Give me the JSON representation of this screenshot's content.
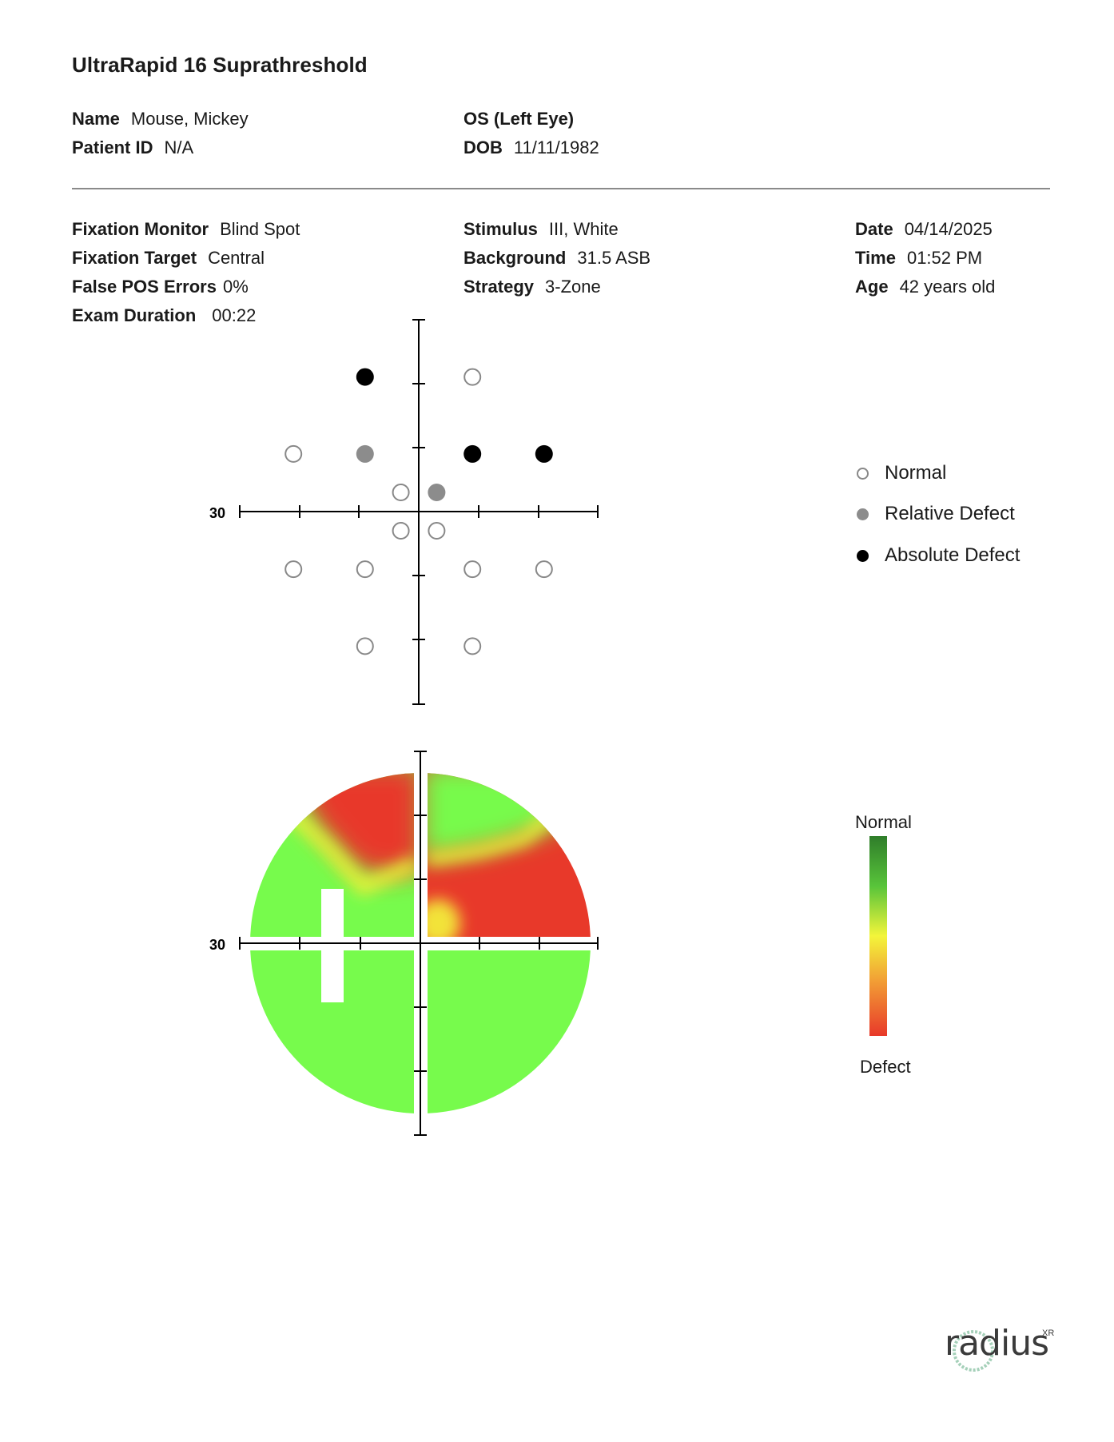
{
  "title": "UltraRapid 16 Suprathreshold",
  "patient": {
    "name_label": "Name",
    "name_value": "Mouse, Mickey",
    "id_label": "Patient ID",
    "id_value": "N/A",
    "eye_label": "OS (Left Eye)",
    "dob_label": "DOB",
    "dob_value": "11/11/1982"
  },
  "exam": {
    "fixation_monitor_label": "Fixation Monitor",
    "fixation_monitor_value": "Blind Spot",
    "fixation_target_label": "Fixation Target",
    "fixation_target_value": "Central",
    "false_pos_label": "False POS Errors",
    "false_pos_value": "0%",
    "duration_label": "Exam Duration",
    "duration_value": "00:22",
    "stimulus_label": "Stimulus",
    "stimulus_value": "III, White",
    "background_label": "Background",
    "background_value": "31.5 ASB",
    "strategy_label": "Strategy",
    "strategy_value": "3-Zone",
    "date_label": "Date",
    "date_value": "04/14/2025",
    "time_label": "Time",
    "time_value": "01:52 PM",
    "age_label": "Age",
    "age_value": "42 years old"
  },
  "dot_plot": {
    "axis_label": "30",
    "points": [
      {
        "x": -9,
        "y": 21,
        "status": "absolute"
      },
      {
        "x": 9,
        "y": 21,
        "status": "normal"
      },
      {
        "x": -21,
        "y": 9,
        "status": "normal"
      },
      {
        "x": -9,
        "y": 9,
        "status": "relative"
      },
      {
        "x": 9,
        "y": 9,
        "status": "absolute"
      },
      {
        "x": 21,
        "y": 9,
        "status": "absolute"
      },
      {
        "x": -3,
        "y": 3,
        "status": "normal"
      },
      {
        "x": 3,
        "y": 3,
        "status": "relative"
      },
      {
        "x": -3,
        "y": -3,
        "status": "normal"
      },
      {
        "x": 3,
        "y": -3,
        "status": "normal"
      },
      {
        "x": -21,
        "y": -9,
        "status": "normal"
      },
      {
        "x": -9,
        "y": -9,
        "status": "normal"
      },
      {
        "x": 9,
        "y": -9,
        "status": "normal"
      },
      {
        "x": 21,
        "y": -9,
        "status": "normal"
      },
      {
        "x": -9,
        "y": -21,
        "status": "normal"
      },
      {
        "x": 9,
        "y": -21,
        "status": "normal"
      }
    ]
  },
  "legend": {
    "normal": "Normal",
    "relative": "Relative Defect",
    "absolute": "Absolute Defect"
  },
  "heatmap": {
    "axis_label": "30"
  },
  "scale": {
    "top_label": "Normal",
    "bottom_label": "Defect"
  },
  "logo": {
    "text": "radius",
    "suffix": "XR"
  },
  "colors": {
    "normal_green": "#77fb4c",
    "defect_red": "#e8392a",
    "transition_yellow": "#f3f53a",
    "relative_gray": "#8c8c8c",
    "absolute_black": "#000000"
  }
}
